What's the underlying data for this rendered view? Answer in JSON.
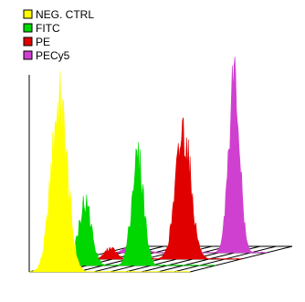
{
  "chart_data": {
    "type": "area",
    "title": "",
    "xlabel": "",
    "ylabel": "",
    "grid": true,
    "legend_position": "top-left",
    "view": "3d-offset-stack",
    "bins": 64,
    "series": [
      {
        "name": "NEG. CTRL",
        "color": "#ffff00",
        "depth": 0,
        "peaks": [
          {
            "center": 12,
            "width": 3.2,
            "height": 0.92
          }
        ]
      },
      {
        "name": "FITC",
        "color": "#00d600",
        "depth": 1,
        "peaks": [
          {
            "center": 12,
            "width": 2.6,
            "height": 0.34
          },
          {
            "center": 33,
            "width": 2.4,
            "height": 0.58
          }
        ]
      },
      {
        "name": "PE",
        "color": "#e00000",
        "depth": 2,
        "peaks": [
          {
            "center": 12,
            "width": 2.2,
            "height": 0.06
          },
          {
            "center": 41,
            "width": 3.0,
            "height": 0.7
          }
        ]
      },
      {
        "name": "PECy5",
        "color": "#d040d0",
        "depth": 3,
        "peaks": [
          {
            "center": 12,
            "width": 3.0,
            "height": 0.08
          },
          {
            "center": 51,
            "width": 2.2,
            "height": 0.95
          }
        ]
      }
    ]
  }
}
